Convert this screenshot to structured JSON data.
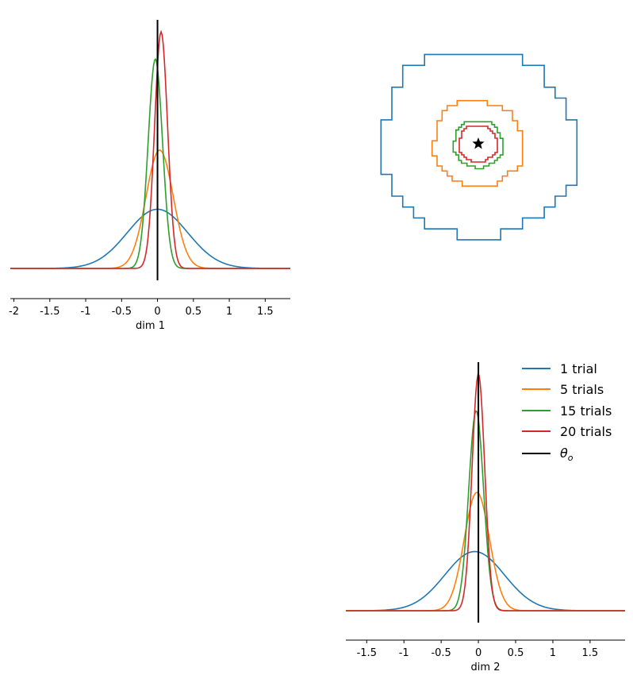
{
  "chart_data": [
    {
      "type": "line",
      "panel": "marginal-dim-1",
      "xlabel": "dim 1",
      "xlim": [
        -2.05,
        1.85
      ],
      "ticks": [
        -2,
        -1.5,
        -1,
        -0.5,
        0,
        0.5,
        1,
        1.5
      ],
      "tick_labels": [
        "-2",
        "-1.5",
        "-1",
        "-0.5",
        "0",
        "0.5",
        "1",
        "1.5"
      ],
      "true_value": 0,
      "series": [
        {
          "name": "1 trial",
          "color": "#1f77b4",
          "peak_x": 0.0,
          "peak": 0.5,
          "sd": 0.42
        },
        {
          "name": "5 trials",
          "color": "#ff7f0e",
          "peak_x": 0.03,
          "peak": 1.0,
          "sd": 0.19
        },
        {
          "name": "15 trials",
          "color": "#2ca02c",
          "peak_x": -0.03,
          "peak": 1.77,
          "sd": 0.1
        },
        {
          "name": "20 trials",
          "color": "#d62728",
          "peak_x": 0.05,
          "peak": 2.0,
          "sd": 0.09
        }
      ]
    },
    {
      "type": "contour",
      "panel": "joint-dim-1-dim-2",
      "center": [
        0,
        0
      ],
      "marker": "star",
      "series": [
        {
          "name": "1 trial",
          "color": "#1f77b4",
          "radius": 1.3
        },
        {
          "name": "5 trials",
          "color": "#ff7f0e",
          "radius": 0.6
        },
        {
          "name": "15 trials",
          "color": "#2ca02c",
          "radius": 0.33
        },
        {
          "name": "20 trials",
          "color": "#d62728",
          "radius": 0.26
        }
      ]
    },
    {
      "type": "line",
      "panel": "marginal-dim-2",
      "xlabel": "dim 2",
      "xlim": [
        -1.78,
        1.97
      ],
      "ticks": [
        -1.5,
        -1,
        -0.5,
        0,
        0.5,
        1,
        1.5
      ],
      "tick_labels": [
        "-1.5",
        "-1",
        "-0.5",
        "0",
        "0.5",
        "1",
        "1.5"
      ],
      "true_value": 0,
      "series": [
        {
          "name": "1 trial",
          "color": "#1f77b4",
          "peak_x": -0.05,
          "peak": 0.5,
          "sd": 0.4
        },
        {
          "name": "5 trials",
          "color": "#ff7f0e",
          "peak_x": -0.02,
          "peak": 1.0,
          "sd": 0.17
        },
        {
          "name": "15 trials",
          "color": "#2ca02c",
          "peak_x": -0.03,
          "peak": 1.69,
          "sd": 0.1
        },
        {
          "name": "20 trials",
          "color": "#d62728",
          "peak_x": 0.0,
          "peak": 2.0,
          "sd": 0.085
        }
      ]
    }
  ],
  "legend": {
    "items": [
      {
        "label": "1 trial",
        "color": "#1f77b4"
      },
      {
        "label": "5 trials",
        "color": "#ff7f0e"
      },
      {
        "label": "15 trials",
        "color": "#2ca02c"
      },
      {
        "label": "20 trials",
        "color": "#d62728"
      }
    ],
    "theta_base": "θ",
    "theta_sub": "o",
    "theta_color": "#000000"
  }
}
